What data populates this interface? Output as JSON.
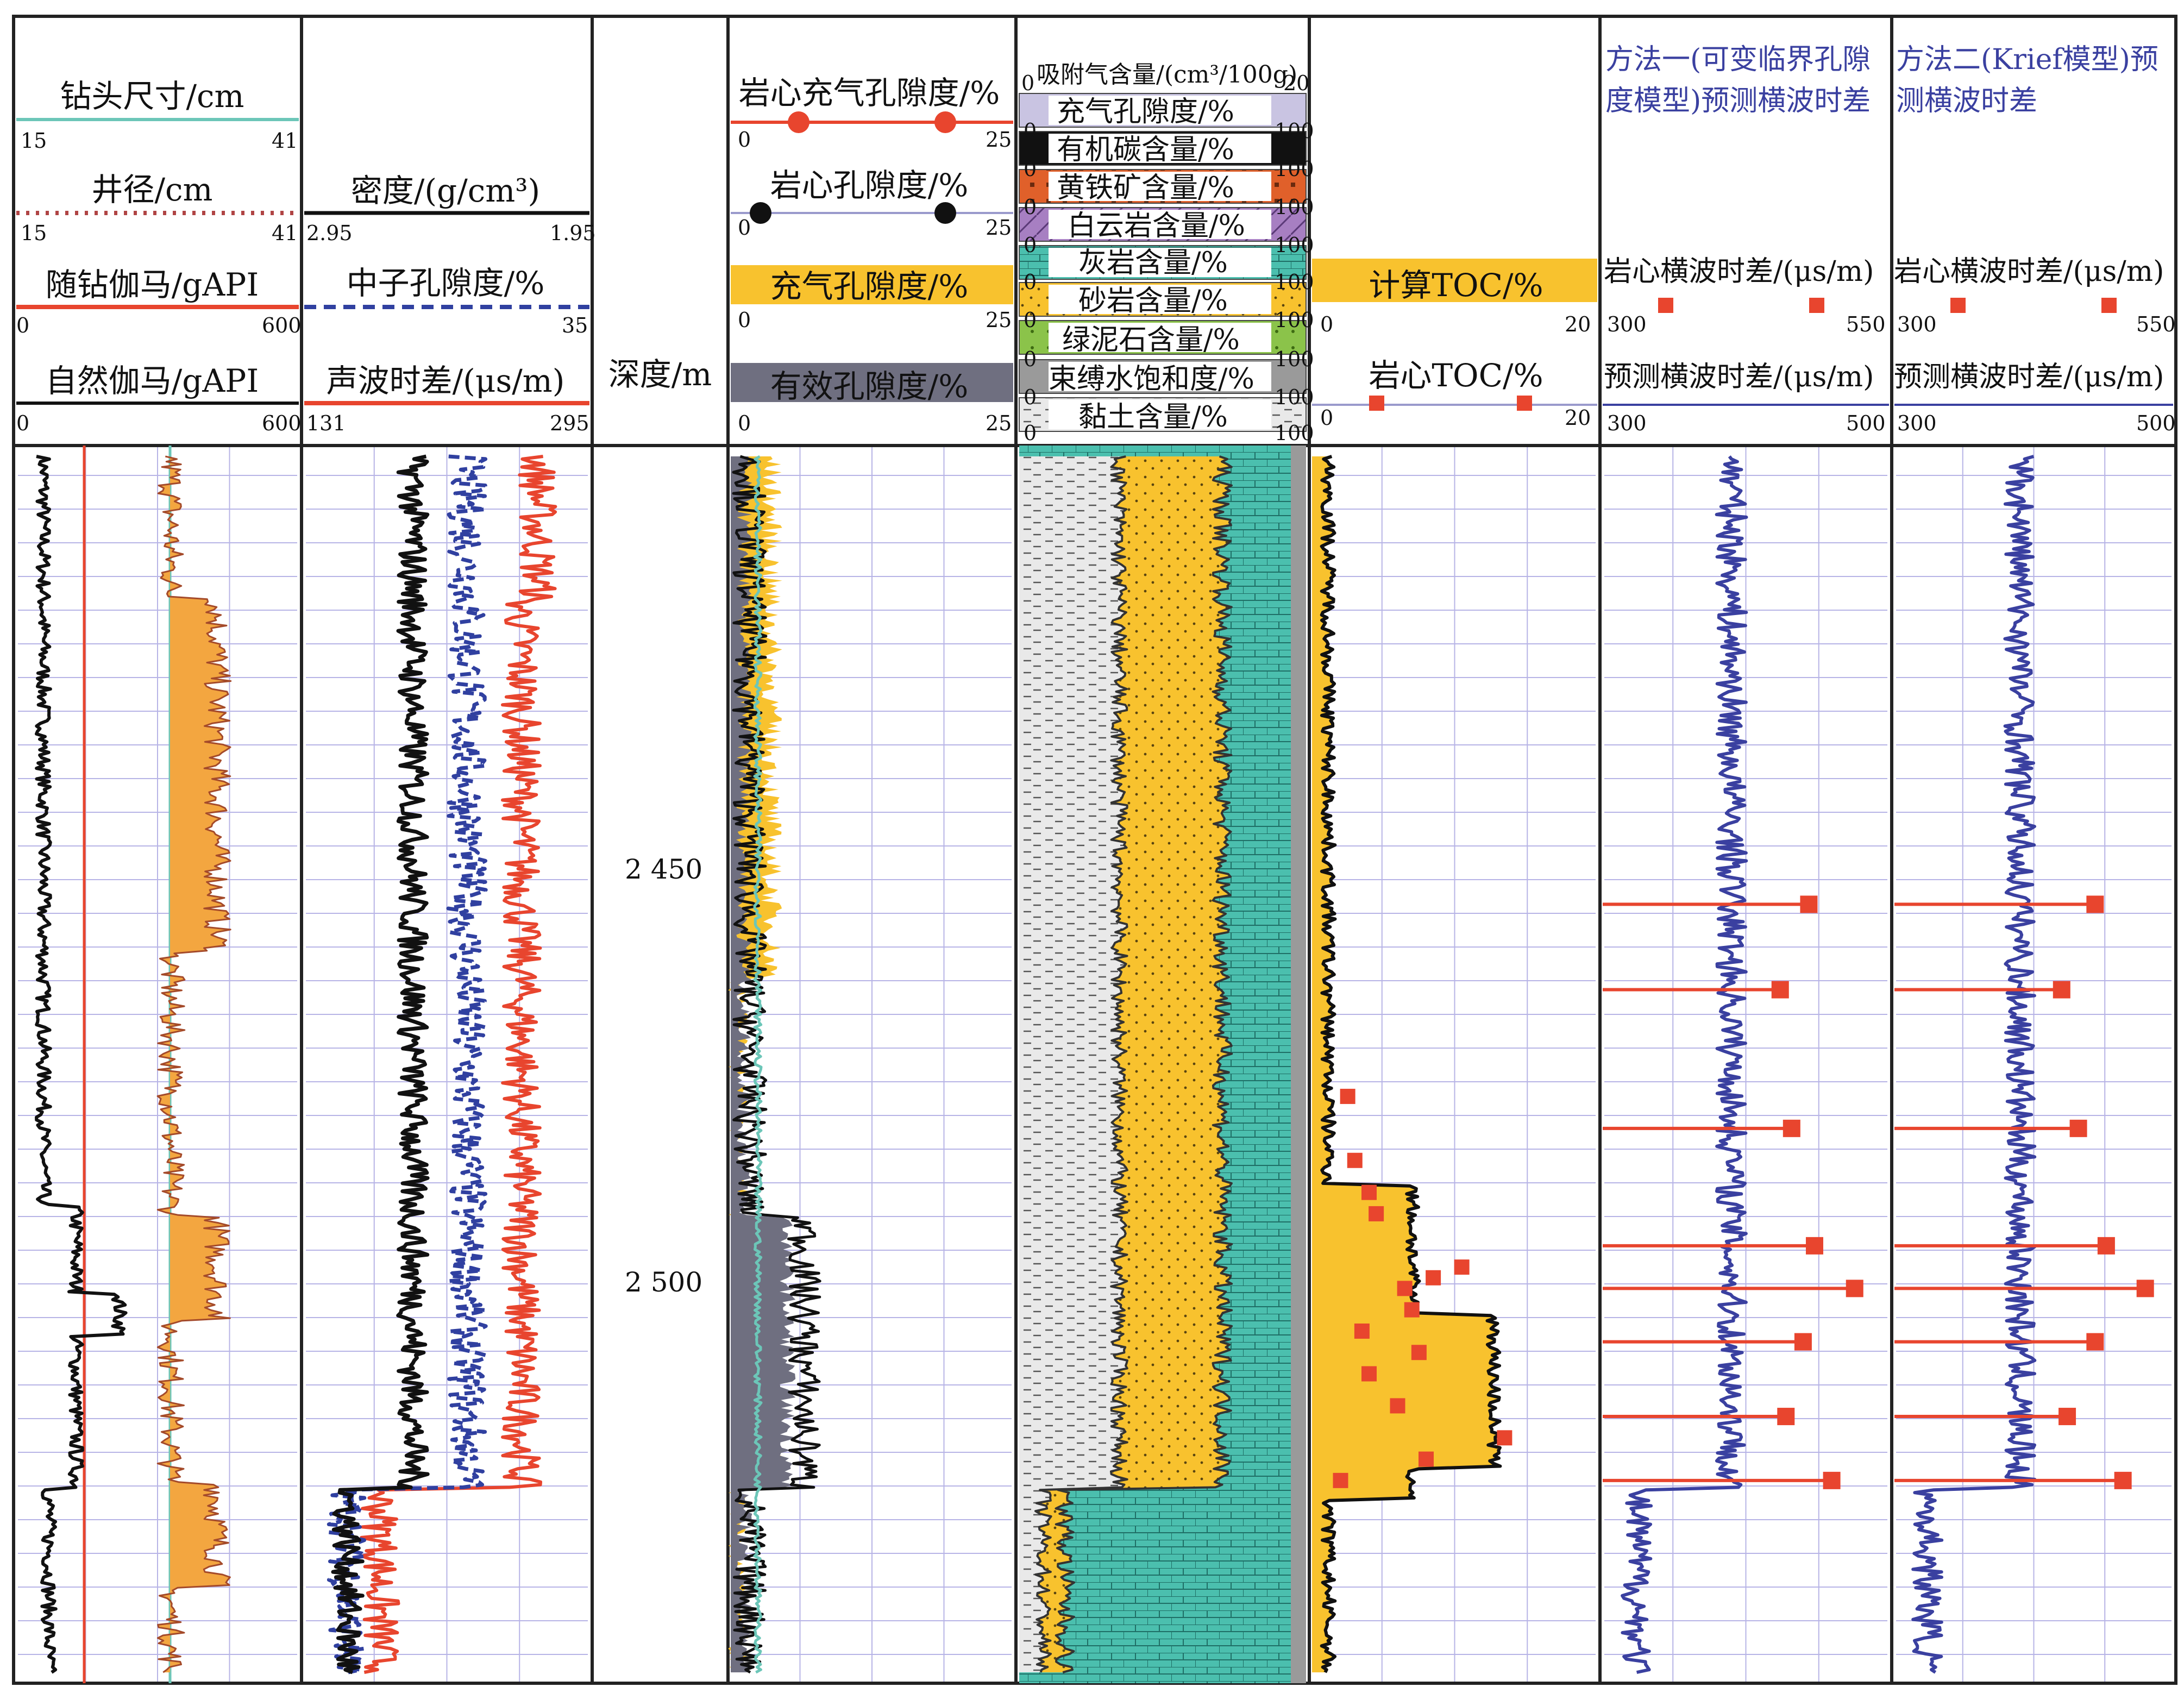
{
  "depth_track": {
    "title": "深度/m",
    "labels": [
      "2 450",
      "2 500"
    ]
  },
  "track1": {
    "curves": [
      {
        "name": "钻头尺寸/cm",
        "min": "15",
        "max": "41",
        "color": "#6cc6b8"
      },
      {
        "name": "井径/cm",
        "min": "15",
        "max": "41",
        "color": "#b04444"
      },
      {
        "name": "随钻伽马/gAPI",
        "min": "0",
        "max": "600",
        "color": "#e8452e"
      },
      {
        "name": "自然伽马/gAPI",
        "min": "0",
        "max": "600",
        "color": "#111111"
      }
    ]
  },
  "track2": {
    "curves": [
      {
        "name": "密度/(g/cm³)",
        "min": "2.95",
        "max": "1.95",
        "color": "#111111"
      },
      {
        "name": "中子孔隙度/%",
        "min": "",
        "max": "35",
        "color": "#3040a0"
      },
      {
        "name": "声波时差/(μs/m)",
        "min": "131",
        "max": "295",
        "color": "#e8452e"
      }
    ]
  },
  "track3": {
    "curves": [
      {
        "name": "岩心充气孔隙度/%",
        "min": "0",
        "max": "25",
        "color": "#e8452e"
      },
      {
        "name": "岩心孔隙度/%",
        "min": "0",
        "max": "25",
        "color": "#111111"
      },
      {
        "name": "充气孔隙度/%",
        "min": "0",
        "max": "25",
        "color": "#f8c22e"
      },
      {
        "name": "有效孔隙度/%",
        "min": "0",
        "max": "25",
        "color": "#6f6f80"
      }
    ]
  },
  "track4": {
    "rows": [
      {
        "name": "吸附气含量/(cm³/100g)",
        "min": "0",
        "max": "20",
        "color": "#ffffff"
      },
      {
        "name": "充气孔隙度/%",
        "min": "0",
        "max": "100",
        "color": "#c9c4e2"
      },
      {
        "name": "有机碳含量/%",
        "min": "0",
        "max": "100",
        "color": "#111111"
      },
      {
        "name": "黄铁矿含量/%",
        "min": "0",
        "max": "100",
        "color": "#e0602a"
      },
      {
        "name": "白云岩含量/%",
        "min": "0",
        "max": "100",
        "color": "#a77fc2"
      },
      {
        "name": "灰岩含量/%",
        "min": "0",
        "max": "100",
        "color": "#4bbfae"
      },
      {
        "name": "砂岩含量/%",
        "min": "0",
        "max": "100",
        "color": "#f8c22e"
      },
      {
        "name": "绿泥石含量/%",
        "min": "0",
        "max": "100",
        "color": "#8bc34a"
      },
      {
        "name": "束缚水饱和度/%",
        "min": "0",
        "max": "100",
        "color": "#8a8a8a"
      },
      {
        "name": "黏土含量/%",
        "min": "0",
        "max": "100",
        "color": "#e6e6e6"
      }
    ]
  },
  "track5": {
    "curves": [
      {
        "name": "计算TOC/%",
        "min": "0",
        "max": "20",
        "color": "#f8c22e"
      },
      {
        "name": "岩心TOC/%",
        "min": "0",
        "max": "20",
        "color": "#e8452e"
      }
    ]
  },
  "track6": {
    "title": "方法一(可变临界孔隙度模型)预测横波时差",
    "title_lines": [
      "方法一(可变临界孔隙",
      "度模型)预测横波时差"
    ],
    "curves": [
      {
        "name": "岩心横波时差/(μs/m)",
        "min": "300",
        "max": "550",
        "color": "#e8452e"
      },
      {
        "name": "预测横波时差/(μs/m)",
        "min": "300",
        "max": "500",
        "color": "#3a40a0"
      }
    ]
  },
  "track7": {
    "title": "方法二(Krief模型)预测横波时差",
    "title_lines": [
      "方法二(Krief模型)预",
      "测横波时差"
    ],
    "curves": [
      {
        "name": "岩心横波时差/(μs/m)",
        "min": "300",
        "max": "550",
        "color": "#e8452e"
      },
      {
        "name": "预测横波时差/(μs/m)",
        "min": "300",
        "max": "500",
        "color": "#3a40a0"
      }
    ]
  },
  "chart_data": {
    "type": "line",
    "title": "",
    "xlabel": "",
    "ylabel": "深度/m",
    "y_axis_labels": [
      2450,
      2500
    ],
    "core_shear_slowness_method1": [
      {
        "depth": 2468,
        "core": 480,
        "predicted": 420
      },
      {
        "depth": 2476,
        "core": 455,
        "predicted": 400
      },
      {
        "depth": 2489,
        "core": 465,
        "predicted": 410
      },
      {
        "depth": 2500,
        "core": 485,
        "predicted": 440
      },
      {
        "depth": 2504,
        "core": 520,
        "predicted": 475
      },
      {
        "depth": 2509,
        "core": 475,
        "predicted": 425
      },
      {
        "depth": 2516,
        "core": 460,
        "predicted": 410
      },
      {
        "depth": 2522,
        "core": 500,
        "predicted": 430
      }
    ],
    "core_shear_slowness_method2": [
      {
        "depth": 2468,
        "core": 480,
        "predicted": 425
      },
      {
        "depth": 2476,
        "core": 450,
        "predicted": 405
      },
      {
        "depth": 2489,
        "core": 465,
        "predicted": 415
      },
      {
        "depth": 2500,
        "core": 490,
        "predicted": 445
      },
      {
        "depth": 2504,
        "core": 525,
        "predicted": 480
      },
      {
        "depth": 2509,
        "core": 480,
        "predicted": 430
      },
      {
        "depth": 2516,
        "core": 455,
        "predicted": 410
      },
      {
        "depth": 2522,
        "core": 505,
        "predicted": 435
      }
    ],
    "core_toc_points": [
      {
        "depth": 2486,
        "toc": 2.5
      },
      {
        "depth": 2492,
        "toc": 3.0
      },
      {
        "depth": 2495,
        "toc": 4.0
      },
      {
        "depth": 2497,
        "toc": 4.5
      },
      {
        "depth": 2502,
        "toc": 10.5
      },
      {
        "depth": 2503,
        "toc": 8.5
      },
      {
        "depth": 2504,
        "toc": 6.5
      },
      {
        "depth": 2506,
        "toc": 7.0
      },
      {
        "depth": 2508,
        "toc": 3.5
      },
      {
        "depth": 2510,
        "toc": 7.5
      },
      {
        "depth": 2512,
        "toc": 4.0
      },
      {
        "depth": 2515,
        "toc": 6.0
      },
      {
        "depth": 2518,
        "toc": 13.5
      },
      {
        "depth": 2520,
        "toc": 8.0
      },
      {
        "depth": 2522,
        "toc": 2.0
      }
    ]
  }
}
